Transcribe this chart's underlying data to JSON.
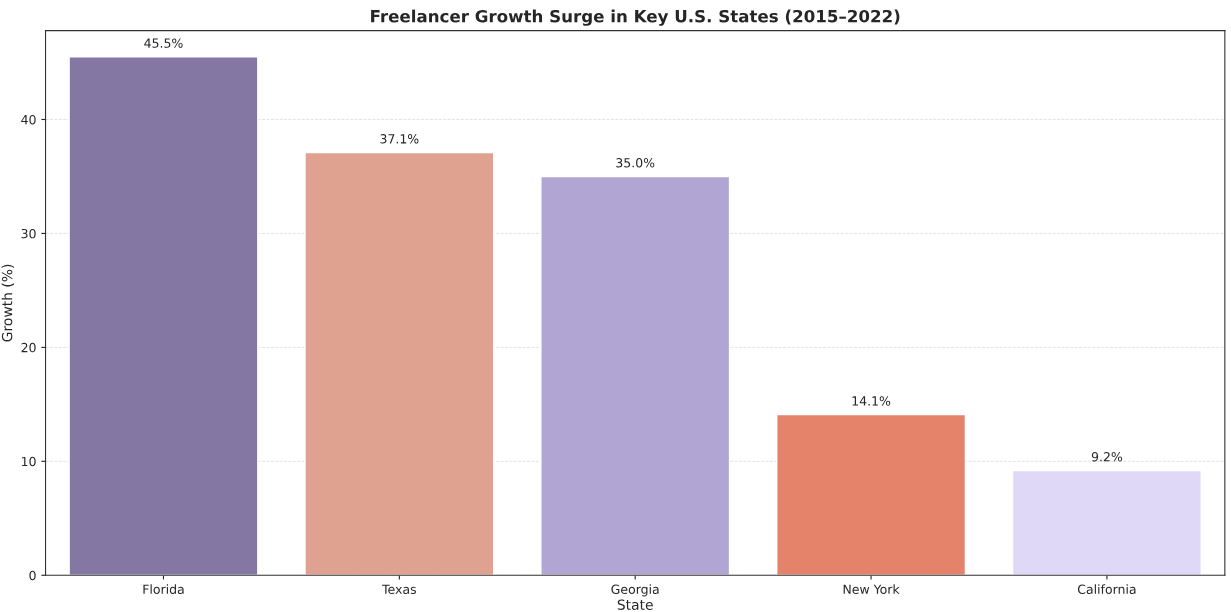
{
  "chart_data": {
    "type": "bar",
    "title": "Freelancer Growth Surge in Key U.S. States (2015–2022)",
    "xlabel": "State",
    "ylabel": "Growth (%)",
    "categories": [
      "Florida",
      "Texas",
      "Georgia",
      "New York",
      "California"
    ],
    "values": [
      45.5,
      37.1,
      35.0,
      14.1,
      9.2
    ],
    "colors": [
      "#8477a3",
      "#e0a290",
      "#b1a5d4",
      "#e5826a",
      "#dfd8f7"
    ],
    "value_labels": [
      "45.5%",
      "37.1%",
      "35.0%",
      "14.1%",
      "9.2%"
    ],
    "ylim": [
      0,
      47.8
    ],
    "yticks": [
      0,
      10,
      20,
      30,
      40
    ],
    "grid": "y"
  }
}
